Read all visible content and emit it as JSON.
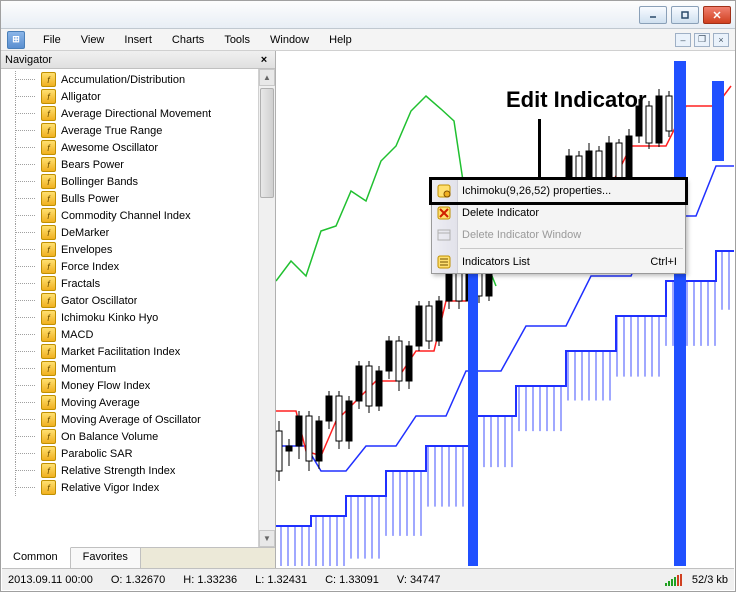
{
  "menu": {
    "items": [
      "File",
      "View",
      "Insert",
      "Charts",
      "Tools",
      "Window",
      "Help"
    ]
  },
  "navigator": {
    "title": "Navigator",
    "tabs": {
      "common": "Common",
      "favorites": "Favorites"
    },
    "indicators": [
      "Accumulation/Distribution",
      "Alligator",
      "Average Directional Movement",
      "Average True Range",
      "Awesome Oscillator",
      "Bears Power",
      "Bollinger Bands",
      "Bulls Power",
      "Commodity Channel Index",
      "DeMarker",
      "Envelopes",
      "Force Index",
      "Fractals",
      "Gator Oscillator",
      "Ichimoku Kinko Hyo",
      "MACD",
      "Market Facilitation Index",
      "Momentum",
      "Money Flow Index",
      "Moving Average",
      "Moving Average of Oscillator",
      "On Balance Volume",
      "Parabolic SAR",
      "Relative Strength Index",
      "Relative Vigor Index"
    ]
  },
  "callout": {
    "text": "Edit Indicator"
  },
  "context_menu": {
    "properties": "Ichimoku(9,26,52) properties...",
    "delete": "Delete Indicator",
    "delete_window": "Delete Indicator Window",
    "list": "Indicators List",
    "list_shortcut": "Ctrl+I"
  },
  "statusbar": {
    "datetime": "2013.09.11 00:00",
    "open": "O: 1.32670",
    "high": "H: 1.33236",
    "low": "L: 1.32431",
    "close": "C: 1.33091",
    "volume": "V: 34747",
    "transfer": "52/3 kb"
  },
  "chart": {
    "colors": {
      "tenkan": "#ff2020",
      "kijun": "#2030ff",
      "senkou_b": "#2030ff",
      "chikou": "#20c030",
      "cloud_hatch": "#4050ff",
      "candle_bear_body": "#ffffff",
      "candle_bull_body": "#000000",
      "candle_outline": "#000000",
      "big_blue_bar": "#2050ff"
    }
  }
}
